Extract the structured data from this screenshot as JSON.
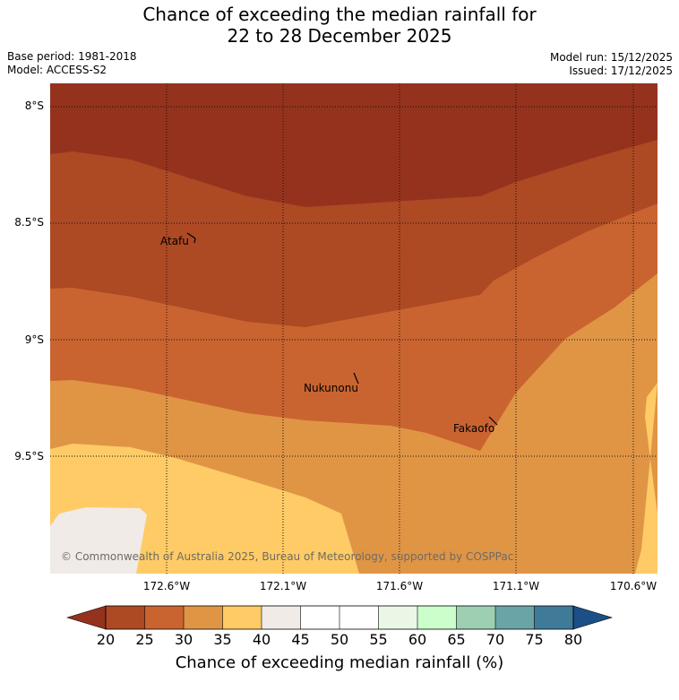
{
  "title": {
    "line1": "Chance of exceeding the median rainfall for",
    "line2": "22 to 28 December 2025"
  },
  "meta": {
    "base_period": "Base period: 1981-2018",
    "model": "Model: ACCESS-S2",
    "model_run": "Model run: 15/12/2025",
    "issued": "Issued: 17/12/2025"
  },
  "axes": {
    "lat_labels": [
      "8°S",
      "8.5°S",
      "9°S",
      "9.5°S"
    ],
    "lon_labels": [
      "172.6°W",
      "172.1°W",
      "171.6°W",
      "171.1°W",
      "170.6°W"
    ]
  },
  "places": {
    "atafu": "Atafu",
    "nukunonu": "Nukunonu",
    "fakaofo": "Fakaofo"
  },
  "copyright": "© Commonwealth of Australia 2025, Bureau of Meteorology, supported by COSPPac",
  "colorbar": {
    "title": "Chance of exceeding median rainfall (%)",
    "ticks": [
      "20",
      "25",
      "30",
      "35",
      "40",
      "45",
      "50",
      "55",
      "60",
      "65",
      "70",
      "75",
      "80"
    ],
    "colors": {
      "below_20": "#95321d",
      "20_25": "#ad4923",
      "25_30": "#c96430",
      "30_35": "#e09545",
      "35_40": "#fecb66",
      "40_45": "#f0ebe7",
      "45_50": "#ffffff",
      "50_55": "#ffffff",
      "55_60": "#eaf7e7",
      "60_65": "#ccfecc",
      "65_70": "#9dcfb3",
      "70_75": "#6aa4a7",
      "75_80": "#3f7a99",
      "above_80": "#1b4f86"
    }
  }
}
